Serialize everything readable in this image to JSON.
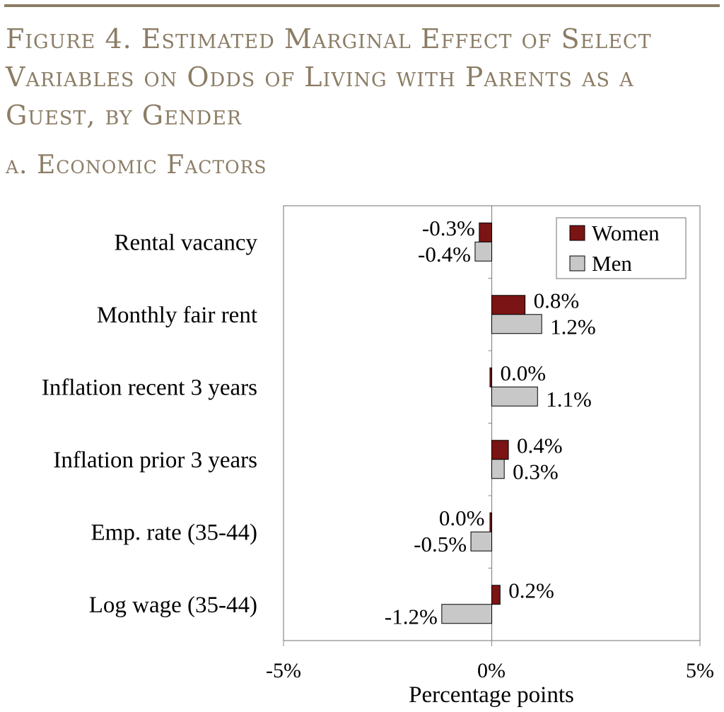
{
  "figure_title": "Figure 4. Estimated Marginal Effect of Select Variables on Odds of Living with Parents as a Guest, by Gender",
  "panel_title": "a. Economic Factors",
  "colors": {
    "accent": "#8b7d65",
    "women": "#7b1414",
    "men": "#c8c8c8"
  },
  "chart_data": {
    "type": "bar",
    "orientation": "horizontal",
    "categories": [
      "Rental vacancy",
      "Monthly fair rent",
      "Inflation recent 3 years",
      "Inflation prior 3 years",
      "Emp. rate (35-44)",
      "Log wage (35-44)"
    ],
    "series": [
      {
        "name": "Women",
        "values": [
          -0.3,
          0.8,
          0.0,
          0.4,
          0.0,
          0.2
        ],
        "labels": [
          "-0.3%",
          "0.8%",
          "0.0%",
          "0.4%",
          "0.0%",
          "0.2%"
        ]
      },
      {
        "name": "Men",
        "values": [
          -0.4,
          1.2,
          1.1,
          0.3,
          -0.5,
          -1.2
        ],
        "labels": [
          "-0.4%",
          "1.2%",
          "1.1%",
          "0.3%",
          "-0.5%",
          "-1.2%"
        ]
      }
    ],
    "xlim": [
      -5,
      5
    ],
    "xticks": [
      "-5%",
      "0%",
      "5%"
    ],
    "xlabel": "Percentage points",
    "ylabel": "",
    "legend_position": "top-right",
    "grid": false
  }
}
